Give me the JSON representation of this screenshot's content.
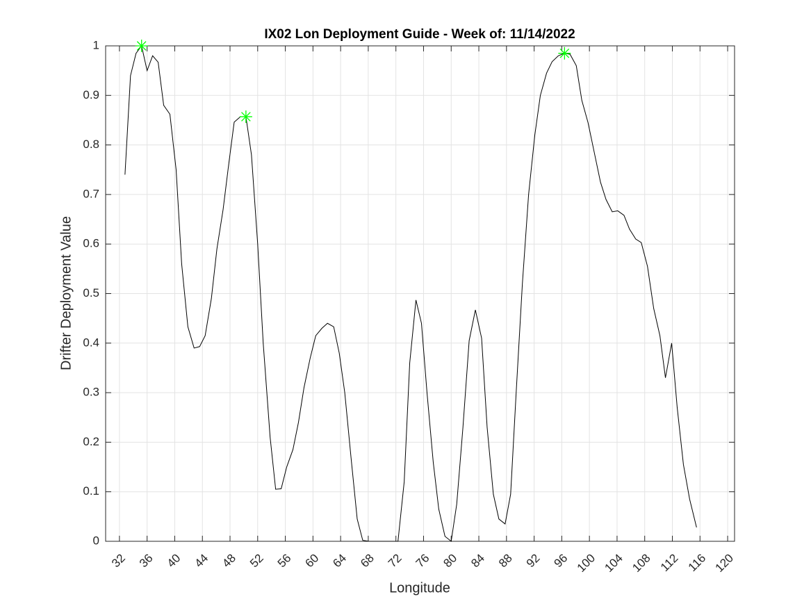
{
  "chart_data": {
    "type": "line",
    "title": "IX02 Lon Deployment Guide - Week of: 11/14/2022",
    "xlabel": "Longitude",
    "ylabel": "Drifter Deployment Value",
    "xlim": [
      30,
      121
    ],
    "ylim": [
      0,
      1
    ],
    "xticks": [
      32,
      36,
      40,
      44,
      48,
      52,
      56,
      60,
      64,
      68,
      72,
      76,
      80,
      84,
      88,
      92,
      96,
      100,
      104,
      108,
      112,
      116,
      120
    ],
    "yticks": [
      0,
      0.1,
      0.2,
      0.3,
      0.4,
      0.5,
      0.6,
      0.7,
      0.8,
      0.9,
      1
    ],
    "grid": true,
    "series": [
      {
        "color": "#000000",
        "marker": "none",
        "x": [
          32.8,
          33.6,
          34.4,
          35.2,
          36.0,
          36.8,
          37.6,
          38.4,
          39.3,
          40.2,
          41.0,
          41.9,
          42.8,
          43.6,
          44.4,
          45.3,
          46.1,
          47.0,
          47.8,
          48.6,
          49.5,
          50.3,
          51.1,
          52.0,
          52.8,
          53.8,
          54.6,
          55.4,
          56.2,
          57.1,
          57.9,
          58.7,
          59.6,
          60.4,
          61.3,
          62.1,
          63.0,
          63.8,
          64.6,
          65.5,
          66.4,
          67.2,
          68.1,
          68.9,
          69.7,
          70.6,
          71.4,
          72.3,
          73.2,
          74.0,
          74.9,
          75.7,
          76.5,
          77.4,
          78.2,
          79.1,
          80.0,
          80.8,
          81.7,
          82.6,
          83.5,
          84.4,
          85.2,
          86.1,
          86.9,
          87.8,
          88.6,
          89.4,
          90.3,
          91.2,
          92.1,
          92.9,
          93.8,
          94.6,
          95.5,
          96.4,
          97.2,
          98.1,
          98.9,
          99.8,
          100.7,
          101.6,
          102.4,
          103.3,
          104.1,
          105.0,
          105.8,
          106.7,
          107.5,
          108.4,
          109.3,
          110.2,
          111.0,
          111.9,
          112.7,
          113.6,
          114.5,
          115.5
        ],
        "values": [
          0.74,
          0.94,
          0.985,
          1.0,
          0.95,
          0.98,
          0.967,
          0.88,
          0.862,
          0.75,
          0.56,
          0.433,
          0.39,
          0.393,
          0.415,
          0.49,
          0.59,
          0.67,
          0.76,
          0.846,
          0.857,
          0.857,
          0.78,
          0.6,
          0.4,
          0.21,
          0.105,
          0.106,
          0.15,
          0.185,
          0.24,
          0.31,
          0.37,
          0.415,
          0.43,
          0.44,
          0.433,
          0.38,
          0.3,
          0.17,
          0.045,
          0.002,
          0,
          0,
          0,
          0,
          0,
          0,
          0.12,
          0.36,
          0.487,
          0.44,
          0.3,
          0.16,
          0.065,
          0.01,
          0,
          0.075,
          0.23,
          0.405,
          0.467,
          0.41,
          0.23,
          0.095,
          0.045,
          0.035,
          0.095,
          0.3,
          0.52,
          0.7,
          0.82,
          0.9,
          0.945,
          0.968,
          0.98,
          0.985,
          0.983,
          0.96,
          0.89,
          0.845,
          0.785,
          0.725,
          0.69,
          0.665,
          0.667,
          0.658,
          0.63,
          0.61,
          0.603,
          0.555,
          0.47,
          0.415,
          0.33,
          0.4,
          0.27,
          0.155,
          0.085,
          0.028
        ]
      },
      {
        "color": "#00ff00",
        "marker": "asterisk",
        "x": [
          35.2,
          50.3,
          96.4
        ],
        "values": [
          1.0,
          0.857,
          0.985
        ]
      }
    ]
  }
}
